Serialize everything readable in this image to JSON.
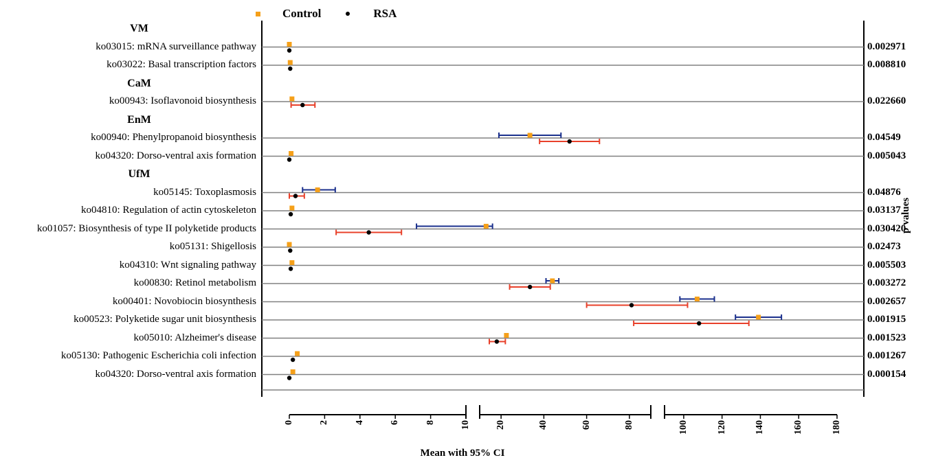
{
  "legend": {
    "control_label": "Control",
    "rsa_label": "RSA"
  },
  "y_right_label": "p values",
  "x_axis_label": "Mean with 95% CI",
  "chart_data": {
    "type": "scatter",
    "title": "",
    "xlabel": "Mean with 95% CI",
    "ylabel": "p values",
    "x_segments": [
      {
        "range": [
          0,
          10
        ],
        "ticks": [
          "0",
          "2",
          "4",
          "6",
          "8",
          "10"
        ]
      },
      {
        "range": [
          10,
          90
        ],
        "ticks": [
          "20",
          "40",
          "60",
          "80"
        ]
      },
      {
        "range": [
          90,
          180
        ],
        "ticks": [
          "100",
          "120",
          "140",
          "160",
          "180"
        ]
      }
    ],
    "groups": [
      {
        "name": "VM",
        "rows": [
          {
            "label": "ko03015: mRNA surveillance pathway",
            "p": "0.002971",
            "control": 0.0,
            "rsa": 0.0
          },
          {
            "label": "ko03022: Basal transcription factors",
            "p": "0.008810",
            "control": 0.05,
            "rsa": 0.05
          }
        ]
      },
      {
        "name": "CaM",
        "rows": [
          {
            "label": "ko00943: Isoflavonoid biosynthesis",
            "p": "0.022660",
            "control": 0.15,
            "rsa": 0.75,
            "rsa_ci": [
              0.1,
              1.45
            ]
          }
        ]
      },
      {
        "name": "EnM",
        "rows": [
          {
            "label": "ko00940: Phenylpropanoid biosynthesis",
            "p": "0.04549",
            "control": 33.5,
            "control_ci": [
              19,
              48
            ],
            "rsa": 52,
            "rsa_ci": [
              38,
              66
            ]
          },
          {
            "label": "ko04320: Dorso-ventral axis formation",
            "p": "0.005043",
            "control": 0.1,
            "rsa": 0.0
          }
        ]
      },
      {
        "name": "UfM",
        "rows": [
          {
            "label": "ko05145: Toxoplasmosis",
            "p": "0.04876",
            "control": 1.6,
            "control_ci": [
              0.75,
              2.6
            ],
            "rsa": 0.35,
            "rsa_ci": [
              0.0,
              0.85
            ]
          },
          {
            "label": "ko04810: Regulation of actin cytoskeleton",
            "p": "0.03137",
            "control": 0.15,
            "rsa": 0.08
          },
          {
            "label": "ko01057: Biosynthesis of type II polyketide products",
            "p": "0.030420",
            "control": 13,
            "control_ci": [
              7.2,
              16
            ],
            "rsa": 4.5,
            "rsa_ci": [
              2.65,
              6.35
            ]
          },
          {
            "label": "ko05131: Shigellosis",
            "p": "0.02473",
            "control": 0.0,
            "rsa": 0.05
          },
          {
            "label": "ko04310: Wnt signaling pathway",
            "p": "0.005503",
            "control": 0.15,
            "rsa": 0.08
          },
          {
            "label": "ko00830: Retinol metabolism",
            "p": "0.003272",
            "control": 44,
            "control_ci": [
              41,
              47
            ],
            "rsa": 33.5,
            "rsa_ci": [
              24,
              43
            ]
          },
          {
            "label": "ko00401: Novobiocin biosynthesis",
            "p": "0.002657",
            "control": 107,
            "control_ci": [
              98,
              116
            ],
            "rsa": 81,
            "rsa_ci": [
              60,
              102
            ]
          },
          {
            "label": "ko00523: Polyketide sugar unit biosynthesis",
            "p": "0.001915",
            "control": 139,
            "control_ci": [
              127,
              151
            ],
            "rsa": 108,
            "rsa_ci": [
              82,
              134
            ]
          },
          {
            "label": "ko05010: Alzheimer's disease",
            "p": "0.001523",
            "control": 22.5,
            "rsa": 18,
            "rsa_ci": [
              14.5,
              22
            ]
          },
          {
            "label": "ko05130: Pathogenic Escherichia coli infection",
            "p": "0.001267",
            "control": 0.45,
            "rsa": 0.2
          },
          {
            "label": "ko04320: Dorso-ventral axis formation",
            "p": "0.000154",
            "control": 0.2,
            "rsa": 0.0
          }
        ]
      }
    ],
    "colors": {
      "control": "#f5a01a",
      "rsa": "#000000",
      "control_ci": "#1a2f8c",
      "rsa_ci": "#e8402a",
      "row_line": "#808080"
    }
  }
}
